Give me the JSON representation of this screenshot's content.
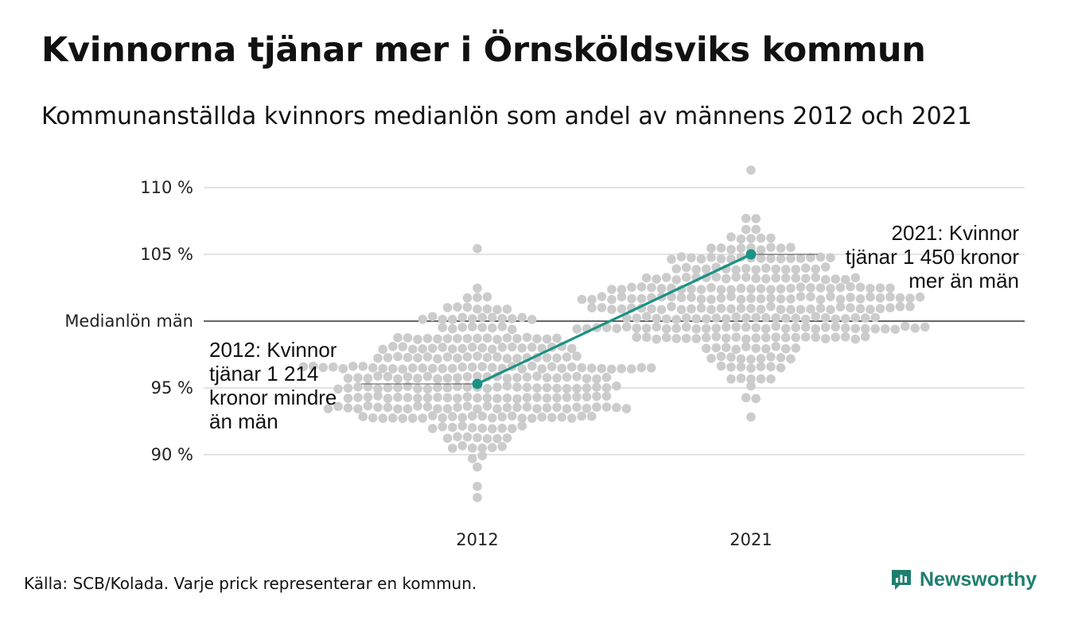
{
  "header": {
    "title": "Kvinnorna tjänar mer i Örnsköldsviks kommun",
    "subtitle": "Kommunanställda kvinnors medianlön som andel av männens 2012 och 2021"
  },
  "footer": {
    "source": "Källa: SCB/Kolada. Varje prick representerar en kommun.",
    "brand": "Newsworthy"
  },
  "colors": {
    "dots": "#cccccc",
    "highlight": "#1a9284",
    "reference_line": "#333333",
    "grid": "#e3e3e3",
    "brand": "#1f7f6f"
  },
  "chart_data": {
    "type": "scatter",
    "subtype": "beeswarm",
    "title": "Kvinnorna tjänar mer i Örnsköldsviks kommun",
    "subtitle": "Kommunanställda kvinnors medianlön som andel av männens 2012 och 2021",
    "categories": [
      "2012",
      "2021"
    ],
    "ylim": [
      86,
      111.5
    ],
    "yticks": [
      90,
      95,
      100,
      105,
      110
    ],
    "yticklabels": [
      "90 %",
      "95 %",
      "Medianlön män",
      "105 %",
      "110 %"
    ],
    "reference_value": 100,
    "grid": true,
    "distributions": [
      {
        "category": "2012",
        "median": 95.5,
        "spread": 2.8,
        "min": 86.6,
        "max": 105.2,
        "count": 290
      },
      {
        "category": "2021",
        "median": 100.8,
        "spread": 2.6,
        "min": 92.5,
        "max": 111.4,
        "count": 290
      }
    ],
    "highlight": {
      "name": "Örnsköldsviks kommun",
      "points": [
        {
          "x": "2012",
          "y": 95.3
        },
        {
          "x": "2021",
          "y": 105.0
        }
      ]
    },
    "annotations": [
      {
        "x": "2012",
        "lines": [
          "2012: Kvinnor",
          "tjänar 1 214",
          "kronor mindre",
          "än män"
        ]
      },
      {
        "x": "2021",
        "lines": [
          "2021: Kvinnor",
          "tjänar 1 450 kronor",
          "mer än män"
        ]
      }
    ]
  }
}
